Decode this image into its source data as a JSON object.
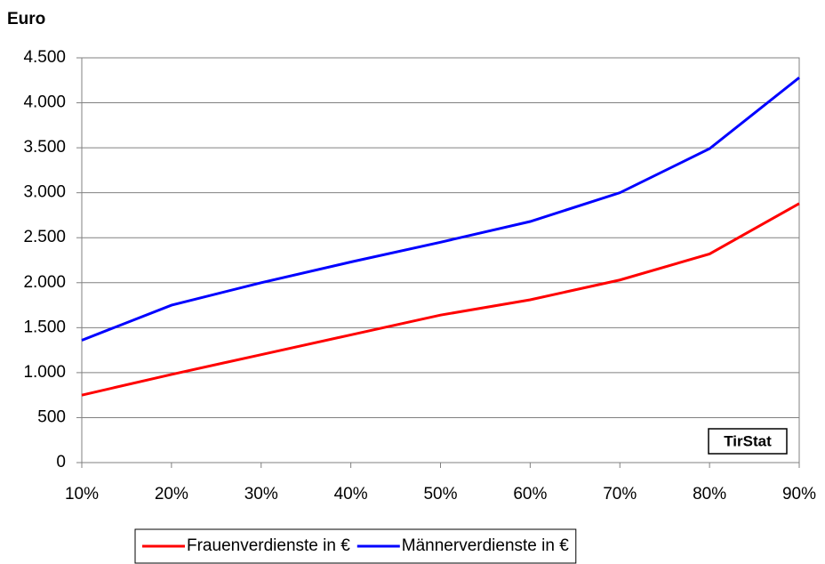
{
  "chart_data": {
    "type": "line",
    "y_label": "Euro",
    "annotation": "TirStat",
    "categories": [
      "10%",
      "20%",
      "30%",
      "40%",
      "50%",
      "60%",
      "70%",
      "80%",
      "90%"
    ],
    "series": [
      {
        "name": "Frauenverdienste in €",
        "color": "#ff0000",
        "values": [
          750,
          980,
          1200,
          1420,
          1640,
          1810,
          2030,
          2320,
          2880
        ]
      },
      {
        "name": "Männerverdienste in €",
        "color": "#0000ff",
        "values": [
          1360,
          1750,
          2000,
          2230,
          2450,
          2680,
          3000,
          3490,
          4280
        ]
      }
    ],
    "ylim": [
      0,
      4500
    ],
    "yticks": [
      0,
      500,
      {
        "value": 1000,
        "label": "1.000"
      },
      {
        "value": 1500,
        "label": "1.500"
      },
      {
        "value": 2000,
        "label": "2.000"
      },
      {
        "value": 2500,
        "label": "2.500"
      },
      {
        "value": 3000,
        "label": "3.000"
      },
      {
        "value": 3500,
        "label": "3.500"
      },
      {
        "value": 4000,
        "label": "4.000"
      },
      {
        "value": 4500,
        "label": "4.500"
      }
    ],
    "grid": true,
    "legend": "bottom"
  }
}
